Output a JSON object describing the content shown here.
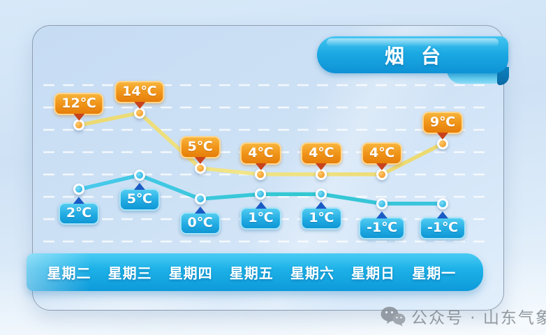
{
  "header": {
    "city_badge": "烟台"
  },
  "chart_data": {
    "type": "line",
    "categories": [
      "星期二",
      "星期三",
      "星期四",
      "星期五",
      "星期六",
      "星期日",
      "星期一"
    ],
    "unit": "℃",
    "series": [
      {
        "id": "high",
        "values": [
          12,
          14,
          5,
          4,
          4,
          4,
          9
        ]
      },
      {
        "id": "low",
        "values": [
          2,
          5,
          0,
          1,
          1,
          -1,
          -1
        ]
      }
    ],
    "grid": true,
    "legend": "none"
  },
  "colors": {
    "high_label": "#ef9217",
    "high_line": "#ecdf7d",
    "high_arrow": "#c8431d",
    "low_label": "#1ba6e0",
    "low_line": "#3ac7d8",
    "low_arrow": "#1b5cc4",
    "badge": "#17a8e2",
    "weekday_bar": "#17a9e2",
    "watermark_text": "#82898f"
  },
  "watermark": {
    "icon": "wechat-icon",
    "text": "公众号 · 山东气象"
  }
}
